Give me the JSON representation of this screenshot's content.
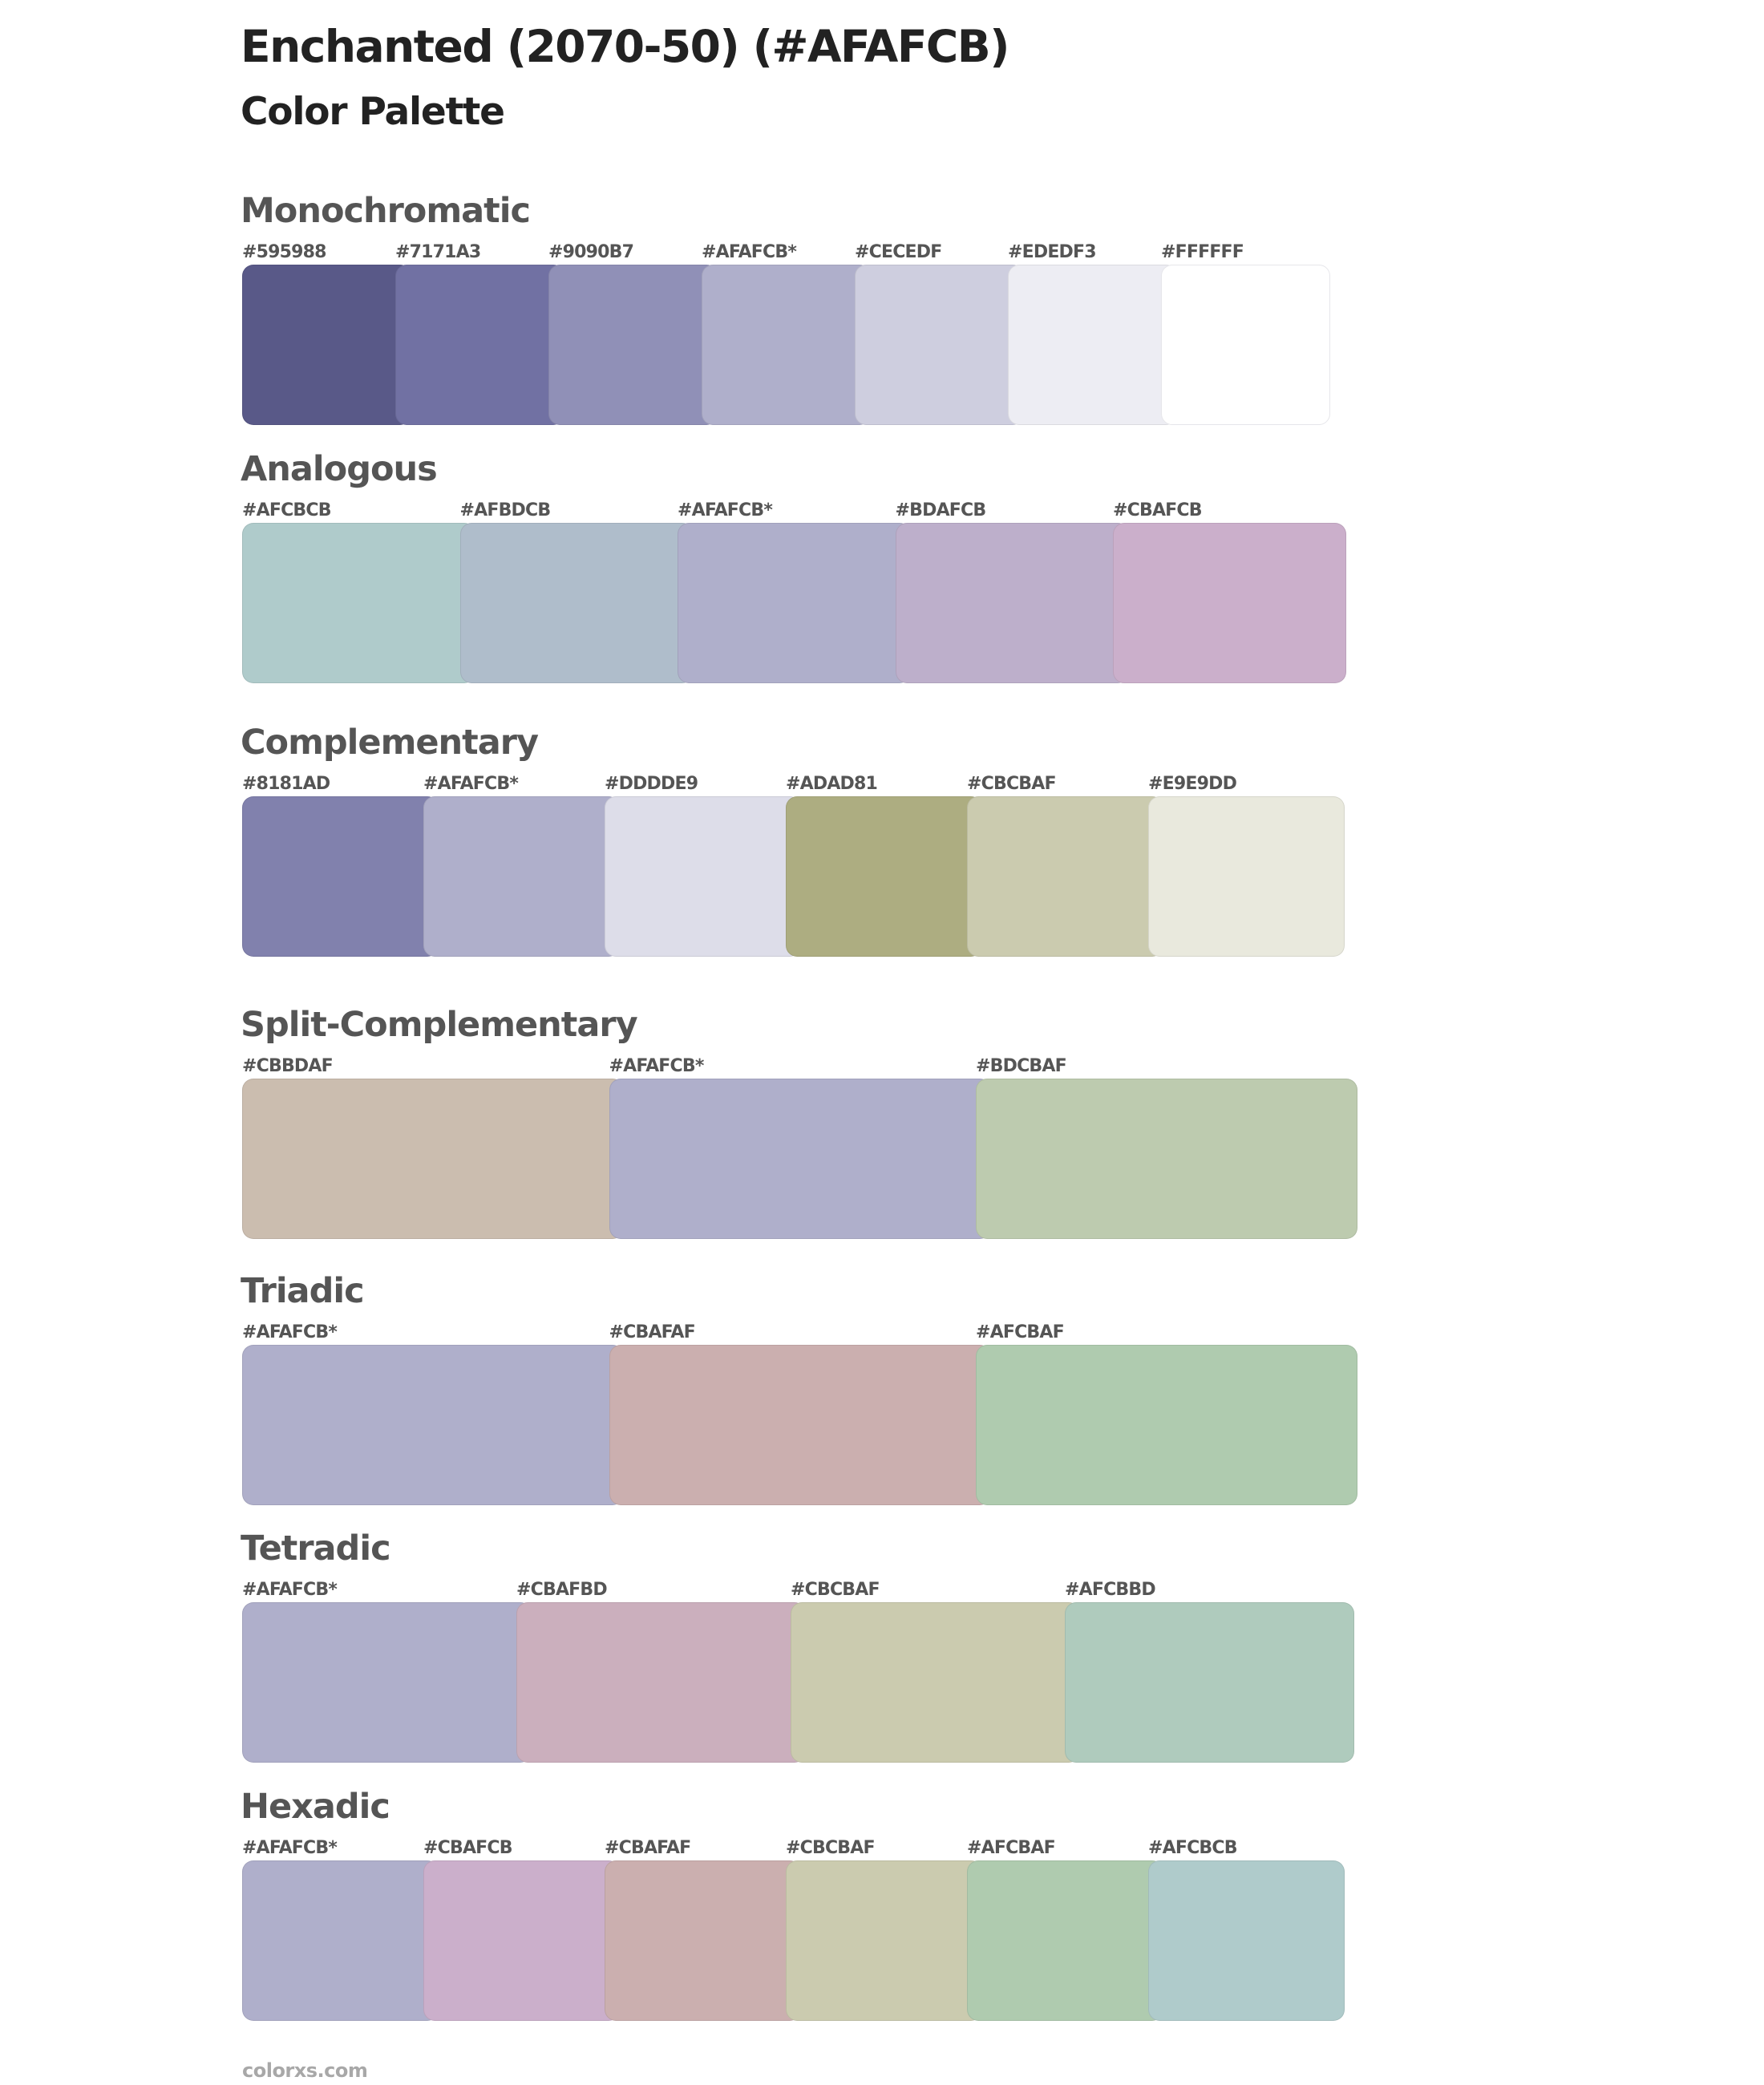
{
  "header": {
    "title": "Enchanted (2070-50) (#AFAFCB)",
    "subtitle": "Color Palette"
  },
  "sections": [
    {
      "name": "Monochromatic",
      "colors": [
        {
          "label": "#595988",
          "hex": "#595988"
        },
        {
          "label": "#7171A3",
          "hex": "#7171A3"
        },
        {
          "label": "#9090B7",
          "hex": "#9090B7"
        },
        {
          "label": "#AFAFCB*",
          "hex": "#AFAFCB"
        },
        {
          "label": "#CECEDF",
          "hex": "#CECEDF"
        },
        {
          "label": "#EDEDF3",
          "hex": "#EDEDF3"
        },
        {
          "label": "#FFFFFF",
          "hex": "#FFFFFF"
        }
      ]
    },
    {
      "name": "Analogous",
      "colors": [
        {
          "label": "#AFCBCB",
          "hex": "#AFCBCB"
        },
        {
          "label": "#AFBDCB",
          "hex": "#AFBDCB"
        },
        {
          "label": "#AFAFCB*",
          "hex": "#AFAFCB"
        },
        {
          "label": "#BDAFCB",
          "hex": "#BDAFCB"
        },
        {
          "label": "#CBAFCB",
          "hex": "#CBAFCB"
        }
      ]
    },
    {
      "name": "Complementary",
      "colors": [
        {
          "label": "#8181AD",
          "hex": "#8181AD"
        },
        {
          "label": "#AFAFCB*",
          "hex": "#AFAFCB"
        },
        {
          "label": "#DDDDE9",
          "hex": "#DDDDE9"
        },
        {
          "label": "#ADAD81",
          "hex": "#ADAD81"
        },
        {
          "label": "#CBCBAF",
          "hex": "#CBCBAF"
        },
        {
          "label": "#E9E9DD",
          "hex": "#E9E9DD"
        }
      ]
    },
    {
      "name": "Split-Complementary",
      "colors": [
        {
          "label": "#CBBDAF",
          "hex": "#CBBDAF"
        },
        {
          "label": "#AFAFCB*",
          "hex": "#AFAFCB"
        },
        {
          "label": "#BDCBAF",
          "hex": "#BDCBAF"
        }
      ]
    },
    {
      "name": "Triadic",
      "colors": [
        {
          "label": "#AFAFCB*",
          "hex": "#AFAFCB"
        },
        {
          "label": "#CBAFAF",
          "hex": "#CBAFAF"
        },
        {
          "label": "#AFCBAF",
          "hex": "#AFCBAF"
        }
      ]
    },
    {
      "name": "Tetradic",
      "colors": [
        {
          "label": "#AFAFCB*",
          "hex": "#AFAFCB"
        },
        {
          "label": "#CBAFBD",
          "hex": "#CBAFBD"
        },
        {
          "label": "#CBCBAF",
          "hex": "#CBCBAF"
        },
        {
          "label": "#AFCBBD",
          "hex": "#AFCBBD"
        }
      ]
    },
    {
      "name": "Hexadic",
      "colors": [
        {
          "label": "#AFAFCB*",
          "hex": "#AFAFCB"
        },
        {
          "label": "#CBAFCB",
          "hex": "#CBAFCB"
        },
        {
          "label": "#CBAFAF",
          "hex": "#CBAFAF"
        },
        {
          "label": "#CBCBAF",
          "hex": "#CBCBAF"
        },
        {
          "label": "#AFCBAF",
          "hex": "#AFCBAF"
        },
        {
          "label": "#AFCBCB",
          "hex": "#AFCBCB"
        }
      ]
    }
  ],
  "footer": {
    "text": "colorxs.com"
  }
}
